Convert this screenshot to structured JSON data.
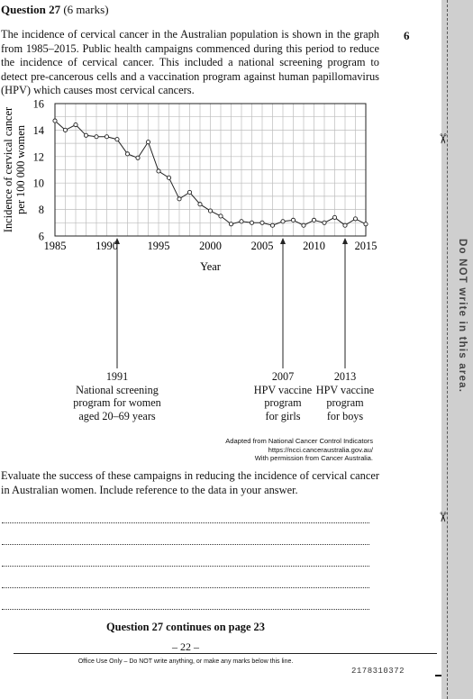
{
  "question": {
    "title": "Question 27",
    "marks_paren": "(6 marks)",
    "marks_right": "6",
    "intro": "The incidence of cervical cancer in the Australian population is shown in the graph from 1985–2015. Public health campaigns commenced during this period to reduce the incidence of cervical cancer. This included a national screening program to detect pre-cancerous cells and a vaccination program against human papillomavirus (HPV) which causes most cervical cancers.",
    "task": "Evaluate the success of these campaigns in reducing the incidence of cervical cancer in Australian women. Include reference to the data in your answer.",
    "continues": "Question 27 continues on page 23",
    "page_number": "– 22 –"
  },
  "chart_data": {
    "type": "line",
    "xlabel": "Year",
    "ylabel_line1": "Incidence of cervical cancer",
    "ylabel_line2": "per 100 000 women",
    "xlim": [
      1985,
      2015
    ],
    "ylim": [
      6,
      16
    ],
    "x_ticks": [
      "1985",
      "1990",
      "1995",
      "2000",
      "2005",
      "2010",
      "2015"
    ],
    "y_ticks": [
      "6",
      "8",
      "10",
      "12",
      "14",
      "16"
    ],
    "grid": true,
    "series": [
      {
        "x": [
          1985,
          1986,
          1987,
          1988,
          1989,
          1990,
          1991,
          1992,
          1993,
          1994,
          1995,
          1996,
          1997,
          1998,
          1999,
          2000,
          2001,
          2002,
          2003,
          2004,
          2005,
          2006,
          2007,
          2008,
          2009,
          2010,
          2011,
          2012,
          2013,
          2014,
          2015
        ],
        "y": [
          14.7,
          14.0,
          14.4,
          13.6,
          13.5,
          13.5,
          13.3,
          12.2,
          11.9,
          13.1,
          10.9,
          10.4,
          8.8,
          9.3,
          8.4,
          7.9,
          7.5,
          6.9,
          7.1,
          7.0,
          7.0,
          6.8,
          7.1,
          7.2,
          6.8,
          7.2,
          7.0,
          7.4,
          6.8,
          7.3,
          6.9
        ]
      }
    ],
    "annotations": [
      {
        "x": 1991,
        "lines": [
          "1991",
          "National screening",
          "program for women",
          "aged 20–69 years"
        ]
      },
      {
        "x": 2007,
        "lines": [
          "2007",
          "HPV vaccine",
          "program",
          "for girls"
        ]
      },
      {
        "x": 2013,
        "lines": [
          "2013",
          "HPV vaccine",
          "program",
          "for boys"
        ]
      }
    ]
  },
  "source": {
    "line1": "Adapted from National Cancer Control Indicators",
    "line2": "https://ncci.canceraustralia.gov.au/",
    "line3": "With permission from Cancer Australia."
  },
  "footer": {
    "office_use": "Office Use Only – Do NOT write anything, or make any marks below this line.",
    "barcode_number": "2178310372"
  },
  "margin": {
    "text": "Do NOT write in this area."
  }
}
